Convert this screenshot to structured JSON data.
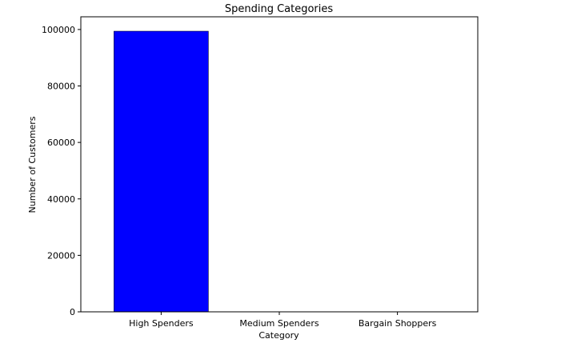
{
  "chart_data": {
    "type": "bar",
    "title": "Spending Categories",
    "xlabel": "Category",
    "ylabel": "Number of Customers",
    "categories": [
      "High Spenders",
      "Medium Spenders",
      "Bargain Shoppers"
    ],
    "values": [
      99400,
      0,
      0
    ],
    "ylim": [
      0,
      104500
    ],
    "yticks": [
      0,
      20000,
      40000,
      60000,
      80000,
      100000
    ],
    "ytick_labels": [
      "0",
      "20000",
      "40000",
      "60000",
      "80000",
      "100000"
    ],
    "bar_color": "#0000ff",
    "bar_edge_color": "#000000",
    "grid": false,
    "legend": "none"
  }
}
